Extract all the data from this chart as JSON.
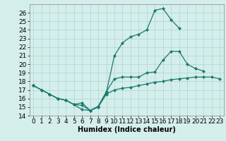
{
  "top_x": [
    0,
    1,
    2,
    3,
    4,
    5,
    6,
    7,
    8,
    9,
    10,
    11,
    12,
    13,
    14,
    15,
    16,
    17,
    18
  ],
  "top_y": [
    17.5,
    17.0,
    16.5,
    16.0,
    15.8,
    15.3,
    14.7,
    14.6,
    15.0,
    16.7,
    21.0,
    22.5,
    23.2,
    23.5,
    24.0,
    26.3,
    26.5,
    25.2,
    24.2
  ],
  "mid_x": [
    0,
    1,
    2,
    3,
    4,
    5,
    6,
    7,
    8,
    9,
    10,
    11,
    12,
    13,
    14,
    15,
    16,
    17,
    18,
    19,
    20,
    21,
    22,
    23
  ],
  "mid_y": [
    17.5,
    17.0,
    16.5,
    16.0,
    15.8,
    15.3,
    15.5,
    14.6,
    15.1,
    16.8,
    18.3,
    18.5,
    18.5,
    18.5,
    19.0,
    19.1,
    20.5,
    21.5,
    21.5,
    20.0,
    19.5,
    19.2,
    null,
    null
  ],
  "bot_x": [
    0,
    1,
    2,
    3,
    4,
    5,
    6,
    7,
    8,
    9,
    10,
    11,
    12,
    13,
    14,
    15,
    16,
    17,
    18,
    19,
    20,
    21,
    22,
    23
  ],
  "bot_y": [
    17.5,
    17.0,
    16.5,
    16.0,
    15.8,
    15.3,
    15.2,
    14.6,
    15.0,
    16.5,
    17.0,
    17.2,
    17.3,
    17.5,
    17.7,
    17.9,
    18.0,
    18.2,
    18.3,
    18.4,
    18.5,
    18.5,
    18.5,
    18.3
  ],
  "color": "#1a7a6e",
  "bg_color": "#d4eeeb",
  "grid_color": "#aed4d0",
  "xlabel": "Humidex (Indice chaleur)",
  "ylim": [
    14,
    27
  ],
  "xlim": [
    -0.5,
    23.5
  ],
  "yticks": [
    14,
    15,
    16,
    17,
    18,
    19,
    20,
    21,
    22,
    23,
    24,
    25,
    26
  ],
  "xticks": [
    0,
    1,
    2,
    3,
    4,
    5,
    6,
    7,
    8,
    9,
    10,
    11,
    12,
    13,
    14,
    15,
    16,
    17,
    18,
    19,
    20,
    21,
    22,
    23
  ],
  "font_size": 6.5,
  "lw": 0.9,
  "ms": 2.2
}
